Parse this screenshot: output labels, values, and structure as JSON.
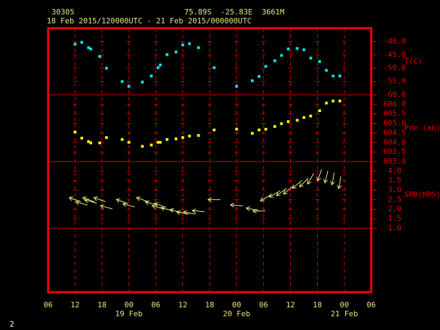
{
  "header": {
    "station": "30305",
    "location": "75.89S  -25.83E  3661M",
    "period": "18 Feb 2015/120000UTC - 21 Feb 2015/000000UTC"
  },
  "page_number": 2,
  "chart_data": {
    "type": "meteogram",
    "xlim": [
      6,
      78
    ],
    "xticks": [
      {
        "value": 6,
        "label": "06"
      },
      {
        "value": 12,
        "label": "12"
      },
      {
        "value": 18,
        "label": "18"
      },
      {
        "value": 24,
        "label": "00"
      },
      {
        "value": 30,
        "label": "06"
      },
      {
        "value": 36,
        "label": "12"
      },
      {
        "value": 42,
        "label": "18"
      },
      {
        "value": 48,
        "label": "00"
      },
      {
        "value": 54,
        "label": "06"
      },
      {
        "value": 60,
        "label": "12"
      },
      {
        "value": 66,
        "label": "18"
      },
      {
        "value": 72,
        "label": "00"
      },
      {
        "value": 78,
        "label": "06"
      }
    ],
    "day_labels": [
      {
        "value": 24,
        "label": "19 Feb"
      },
      {
        "value": 48,
        "label": "20 Feb"
      },
      {
        "value": 72,
        "label": "21 Feb"
      }
    ],
    "panels": [
      {
        "type": "scatter",
        "label": "T(C)",
        "color": "#00e8e8",
        "ylim": [
          -60,
          -35
        ],
        "yticks": [
          {
            "value": -40,
            "label": "-40.0"
          },
          {
            "value": -45,
            "label": "-45.0"
          },
          {
            "value": -50,
            "label": "-50.0"
          },
          {
            "value": -55,
            "label": "-55.0"
          },
          {
            "value": -60,
            "label": "-60.0"
          }
        ],
        "x": [
          12,
          13.5,
          15,
          15.5,
          17.5,
          19,
          22.5,
          24,
          27,
          29,
          30.5,
          31,
          32.5,
          34.5,
          36,
          37.5,
          39.5,
          43,
          48,
          51.5,
          53,
          54.5,
          56.5,
          58,
          59.5,
          61.5,
          63,
          64.5,
          66.5,
          68,
          69.5,
          71
        ],
        "values": [
          -41.0,
          -40.3,
          -42.3,
          -42.8,
          -45.6,
          -50.0,
          -55.0,
          -56.8,
          -55.2,
          -52.9,
          -49.8,
          -48.8,
          -44.9,
          -43.9,
          -41.3,
          -40.8,
          -42.3,
          -49.8,
          -56.8,
          -54.7,
          -53.1,
          -49.3,
          -47.2,
          -45.2,
          -42.8,
          -42.6,
          -43.1,
          -46.2,
          -47.5,
          -50.8,
          -52.9,
          -52.9
        ]
      },
      {
        "type": "scatter",
        "label": "Pre (mb)",
        "color": "#f0f000",
        "ylim": [
          603,
          606.5
        ],
        "yticks": [
          {
            "value": 603,
            "label": "603.0"
          },
          {
            "value": 603.5,
            "label": "603.5"
          },
          {
            "value": 604,
            "label": "604.0"
          },
          {
            "value": 604.5,
            "label": "604.5"
          },
          {
            "value": 605,
            "label": "605.0"
          },
          {
            "value": 605.5,
            "label": "605.5"
          },
          {
            "value": 606,
            "label": "606.0"
          }
        ],
        "x": [
          12,
          13.5,
          15,
          15.5,
          17.5,
          19,
          22.5,
          24,
          27,
          29,
          30.5,
          31,
          32.5,
          34.5,
          36,
          37.5,
          39.5,
          43,
          48,
          51.5,
          53,
          54.5,
          56.5,
          58,
          59.5,
          61.5,
          63,
          64.5,
          66.5,
          68,
          69.5,
          71
        ],
        "values": [
          604.55,
          604.23,
          604.05,
          603.98,
          603.98,
          604.26,
          604.16,
          604.01,
          603.8,
          603.87,
          604.01,
          604.01,
          604.16,
          604.19,
          604.26,
          604.34,
          604.37,
          604.66,
          604.7,
          604.48,
          604.66,
          604.7,
          604.84,
          604.99,
          605.1,
          605.17,
          605.31,
          605.39,
          605.67,
          606.07,
          606.18,
          606.18
        ]
      },
      {
        "type": "wind",
        "label": "SPD(MPS)",
        "color": "#f0f080",
        "ylim": [
          1,
          4.5
        ],
        "yticks": [
          {
            "value": 1,
            "label": "1.0"
          },
          {
            "value": 1.5,
            "label": "1.5"
          },
          {
            "value": 2,
            "label": "2.0"
          },
          {
            "value": 2.5,
            "label": "2.5"
          },
          {
            "value": 3,
            "label": "3.0"
          },
          {
            "value": 3.5,
            "label": "3.5"
          },
          {
            "value": 4,
            "label": "4.0"
          }
        ],
        "x": [
          12,
          13.5,
          15,
          15.5,
          17.5,
          19,
          22.5,
          24,
          27,
          29,
          30.5,
          31,
          32.5,
          34.5,
          36,
          37.5,
          39.5,
          43,
          48,
          51.5,
          53,
          54.5,
          56.5,
          58,
          59.5,
          61.5,
          63,
          64.5,
          66.5,
          68,
          69.5,
          71
        ],
        "values": [
          2.5,
          2.3,
          2.5,
          2.4,
          2.5,
          2.1,
          2.4,
          2.2,
          2.5,
          2.3,
          2.1,
          2.2,
          2.0,
          1.9,
          1.8,
          1.8,
          1.9,
          2.5,
          2.2,
          2.0,
          1.9,
          2.6,
          2.8,
          2.9,
          3.0,
          3.3,
          3.4,
          3.6,
          3.8,
          3.7,
          3.6,
          3.4
        ],
        "directions": [
          200,
          195,
          200,
          195,
          200,
          195,
          200,
          195,
          200,
          195,
          195,
          200,
          195,
          195,
          190,
          190,
          185,
          180,
          185,
          190,
          180,
          150,
          150,
          145,
          140,
          140,
          135,
          120,
          110,
          105,
          100,
          100
        ]
      }
    ]
  }
}
